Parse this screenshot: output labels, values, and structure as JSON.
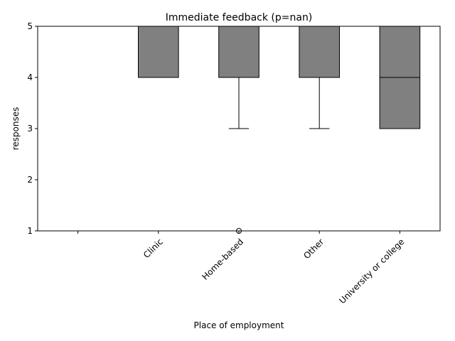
{
  "chart_data": {
    "type": "box",
    "title": "Immediate feedback (p=nan)",
    "xlabel": "Place of employment",
    "ylabel": "responses",
    "ylim": [
      1,
      5
    ],
    "yticks": [
      1,
      2,
      3,
      4,
      5
    ],
    "categories": [
      "",
      "Clinic",
      "Home-based",
      "Other",
      "University or college"
    ],
    "boxes": [
      null,
      {
        "whisker_low": 4,
        "q1": 4,
        "median": 4,
        "q3": 5,
        "whisker_high": 5,
        "outliers": []
      },
      {
        "whisker_low": 3,
        "q1": 4,
        "median": 4,
        "q3": 5,
        "whisker_high": 5,
        "outliers": [
          1
        ]
      },
      {
        "whisker_low": 3,
        "q1": 4,
        "median": 4,
        "q3": 5,
        "whisker_high": 5,
        "outliers": []
      },
      {
        "whisker_low": 3,
        "q1": 3,
        "median": 4,
        "q3": 5,
        "whisker_high": 5,
        "outliers": []
      }
    ],
    "box_color": "#808080",
    "edge_color": "#000000",
    "grid": false,
    "legend": "none"
  }
}
